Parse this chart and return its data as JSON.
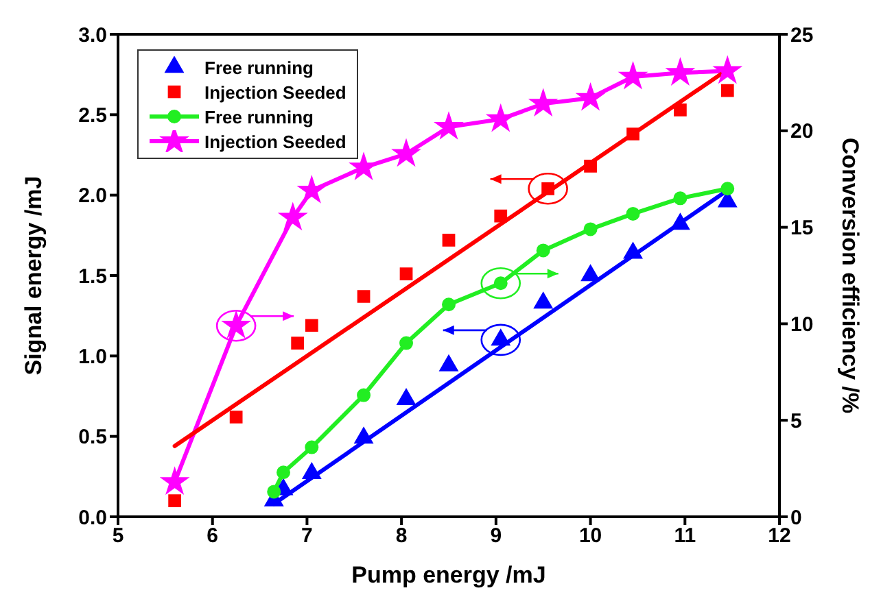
{
  "chart_data": {
    "type": "scatter",
    "xlabel": "Pump energy /mJ",
    "ylabel": "Signal energy /mJ",
    "y2label": "Conversion efficiency /%",
    "xlim": [
      5,
      12
    ],
    "xticks": [
      5,
      6,
      7,
      8,
      9,
      10,
      11,
      12
    ],
    "ylim": [
      0,
      3
    ],
    "yticks": [
      {
        "value": 0,
        "label": "0.0"
      },
      {
        "value": 0.5,
        "label": "0.5"
      },
      {
        "value": 1,
        "label": "1.0"
      },
      {
        "value": 1.5,
        "label": "1.5"
      },
      {
        "value": 2,
        "label": "2.0"
      },
      {
        "value": 2.5,
        "label": "2.5"
      },
      {
        "value": 3,
        "label": "3.0"
      }
    ],
    "y2lim": [
      0,
      25
    ],
    "y2ticks": [
      0,
      5,
      10,
      15,
      20,
      25
    ],
    "grid": false,
    "legend": "top left",
    "series": [
      {
        "name": "Free running",
        "marker": "triangle",
        "color": "#0000ff",
        "x": [
          6.65,
          6.75,
          7.05,
          7.6,
          8.05,
          8.5,
          9.05,
          9.5,
          10,
          10.45,
          10.95,
          11.45
        ],
        "values": [
          0.1,
          0.17,
          0.27,
          0.49,
          0.73,
          0.94,
          1.1,
          1.33,
          1.5,
          1.64,
          1.82,
          1.96
        ]
      },
      {
        "name": "Injection Seeded",
        "marker": "square",
        "color": "#ff0000",
        "x": [
          5.6,
          6.25,
          6.9,
          7.05,
          7.6,
          8.05,
          8.5,
          9.05,
          9.55,
          10,
          10.45,
          10.95,
          11.45
        ],
        "values": [
          0.1,
          0.62,
          1.08,
          1.19,
          1.37,
          1.51,
          1.72,
          1.87,
          2.04,
          2.18,
          2.38,
          2.53,
          2.65
        ]
      },
      {
        "name": "Free running",
        "type": "line",
        "axis": "y2",
        "marker": "circle",
        "color": "#22ee22",
        "x": [
          6.65,
          6.75,
          7.05,
          7.6,
          8.05,
          8.5,
          9.05,
          9.5,
          10,
          10.45,
          10.95,
          11.45
        ],
        "values": [
          1.3,
          2.3,
          3.6,
          6.3,
          9.0,
          11.0,
          12.1,
          13.8,
          14.9,
          15.7,
          16.5,
          17.0
        ]
      },
      {
        "name": "Injection Seeded",
        "type": "line",
        "axis": "y2",
        "marker": "star",
        "color": "#ff00ff",
        "x": [
          5.6,
          6.25,
          6.85,
          7.05,
          7.6,
          8.05,
          8.5,
          9.05,
          9.5,
          10,
          10.45,
          10.95,
          11.45
        ],
        "values": [
          1.8,
          9.9,
          15.5,
          16.9,
          18.1,
          18.8,
          20.2,
          20.6,
          21.4,
          21.7,
          22.8,
          23.0,
          23.1
        ]
      },
      {
        "type": "line",
        "marker": "none",
        "color": "#0000ff",
        "x": [
          6.65,
          11.45
        ],
        "values": [
          0.08,
          2.03
        ]
      },
      {
        "type": "line",
        "marker": "none",
        "color": "#ff0000",
        "x": [
          5.6,
          11.45
        ],
        "values": [
          0.44,
          2.78
        ]
      }
    ]
  }
}
